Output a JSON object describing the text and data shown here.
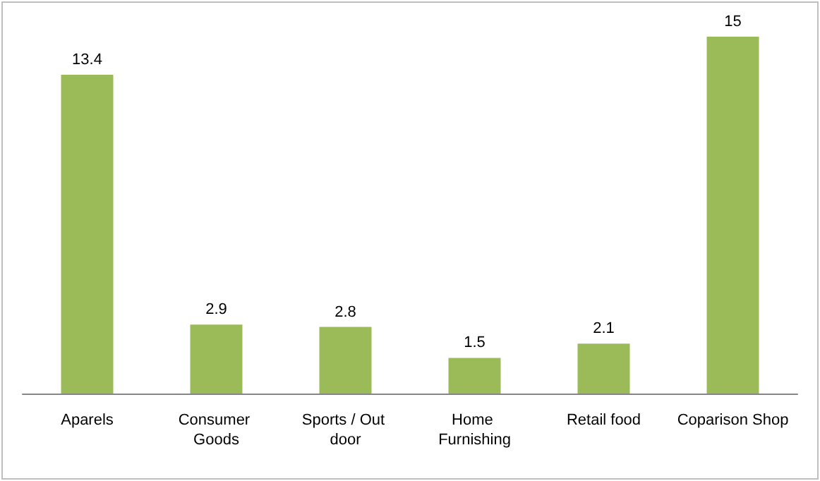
{
  "chart_data": {
    "type": "bar",
    "categories": [
      "Aparels",
      "Consumer Goods",
      "Sports / Out door",
      "Home Furnishing",
      "Retail food",
      "Coparison Shop"
    ],
    "values": [
      13.4,
      2.9,
      2.8,
      1.5,
      2.1,
      15
    ],
    "color": "#9bbb59",
    "data_labels": true
  }
}
